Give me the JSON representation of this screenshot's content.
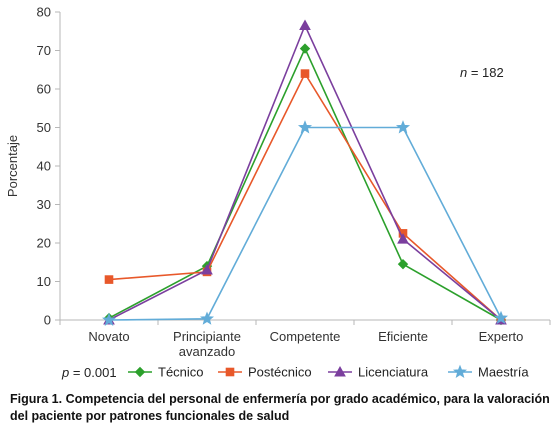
{
  "chart_data": {
    "type": "line",
    "categories": [
      "Novato",
      "Principiante avanzado",
      "Competente",
      "Eficiente",
      "Experto"
    ],
    "category_lines": [
      [
        "Novato"
      ],
      [
        "Principiante",
        "avanzado"
      ],
      [
        "Competente"
      ],
      [
        "Eficiente"
      ],
      [
        "Experto"
      ]
    ],
    "ylabel": "Porcentaje",
    "xlabel": "",
    "ylim": [
      0,
      80
    ],
    "yticks": [
      0,
      10,
      20,
      30,
      40,
      50,
      60,
      70,
      80
    ],
    "grid": false,
    "legend_position": "bottom",
    "annotation": {
      "prefix": "n",
      "text": " = 182"
    },
    "p_value": {
      "prefix": "p",
      "text": " = 0.001"
    },
    "series": [
      {
        "name": "Técnico",
        "color": "#2ca02c",
        "marker": "diamond",
        "values": [
          0.5,
          14,
          70.5,
          14.5,
          0
        ]
      },
      {
        "name": "Postécnico",
        "color": "#e8582a",
        "marker": "square",
        "values": [
          10.5,
          12.5,
          64,
          22.5,
          0
        ]
      },
      {
        "name": "Licenciatura",
        "color": "#7b3f9e",
        "marker": "triangle",
        "values": [
          0,
          13,
          76.5,
          21,
          0
        ]
      },
      {
        "name": "Maestría",
        "color": "#62acd8",
        "marker": "star",
        "values": [
          0,
          0.3,
          50,
          50,
          0.5
        ]
      }
    ]
  },
  "caption": {
    "line1": "Figura 1. Competencia del personal de enfermería por grado académico, para la valoración",
    "line2": "del paciente por patrones funcionales de salud"
  }
}
